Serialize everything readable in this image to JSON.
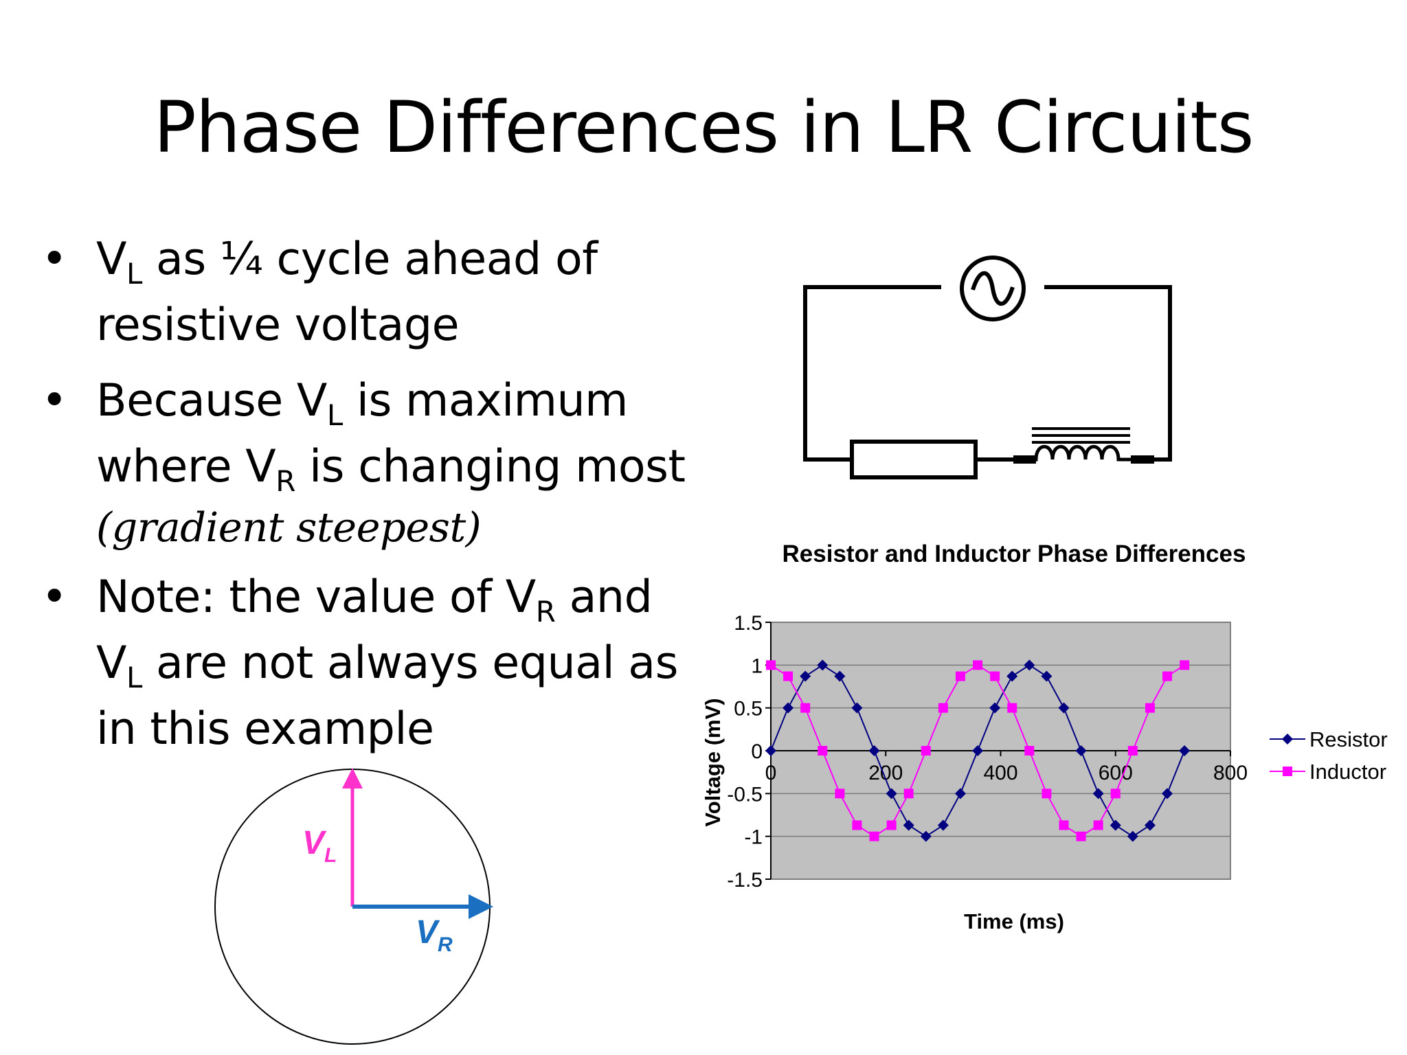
{
  "slide": {
    "title": "Phase Differences  in LR Circuits",
    "bullets": [
      {
        "pre": "V",
        "sub": "L",
        "post": " as ¼ cycle ahead of resistive voltage"
      },
      {
        "pre": "Because V",
        "sub": "L",
        "mid": " is maximum where V",
        "sub2": "R",
        "post": " is changing most",
        "italic": "(gradient steepest)"
      },
      {
        "pre": "Note: the value of V",
        "sub": "R",
        "mid": " and V",
        "sub2": "L",
        "post": " are not always equal as in this example"
      }
    ],
    "bullet_symbol": "•"
  },
  "phasor": {
    "vl_label": "V",
    "vl_sub": "L",
    "vl_color": "#ff33cc",
    "vr_label": "V",
    "vr_sub": "R",
    "vr_color": "#1a6fc0"
  },
  "chart_data": {
    "type": "line",
    "title": "Resistor and Inductor Phase Differences",
    "xlabel": "Time (ms)",
    "ylabel": "Voltage (mV)",
    "xlim": [
      0,
      800
    ],
    "ylim": [
      -1.5,
      1.5
    ],
    "xticks": [
      "0",
      "200",
      "400",
      "600",
      "800"
    ],
    "yticks": [
      "1.5",
      "1",
      "0.5",
      "0",
      "-0.5",
      "-1",
      "-1.5"
    ],
    "grid": true,
    "plot_background": "#c0c0c0",
    "legend_position": "right",
    "x": [
      0,
      30,
      60,
      90,
      120,
      150,
      180,
      210,
      240,
      270,
      300,
      330,
      360,
      390,
      420,
      450,
      480,
      510,
      540,
      570,
      600,
      630,
      660,
      690,
      720
    ],
    "series": [
      {
        "name": "Resistor",
        "color": "#000080",
        "marker": "diamond",
        "values": [
          0,
          0.5,
          0.87,
          1,
          0.87,
          0.5,
          0,
          -0.5,
          -0.87,
          -1,
          -0.87,
          -0.5,
          0,
          0.5,
          0.87,
          1,
          0.87,
          0.5,
          0,
          -0.5,
          -0.87,
          -1,
          -0.87,
          -0.5,
          0
        ]
      },
      {
        "name": "Inductor",
        "color": "#ff00ff",
        "marker": "square",
        "values": [
          1,
          0.87,
          0.5,
          0,
          -0.5,
          -0.87,
          -1,
          -0.87,
          -0.5,
          0,
          0.5,
          0.87,
          1,
          0.87,
          0.5,
          0,
          -0.5,
          -0.87,
          -1,
          -0.87,
          -0.5,
          0,
          0.5,
          0.87,
          1
        ]
      }
    ]
  }
}
